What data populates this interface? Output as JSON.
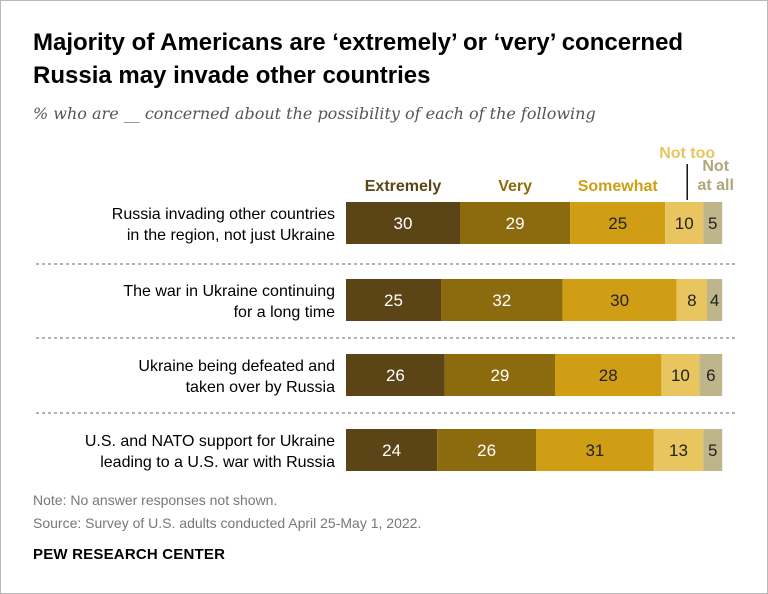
{
  "title": "Majority of Americans are ‘extremely’ or ‘very’ concerned Russia may invade other countries",
  "subtitle": "% who are __ concerned about the possibility of each of the following",
  "note": "Note: No answer responses not shown.",
  "source": "Source: Survey of U.S. adults conducted April 25-May 1, 2022.",
  "brand": "PEW RESEARCH CENTER",
  "chart_data": {
    "type": "bar",
    "orientation": "horizontal",
    "stacked": true,
    "title": "Majority of Americans are ‘extremely’ or ‘very’ concerned Russia may invade other countries",
    "subtitle": "% who are __ concerned about the possibility of each of the following",
    "categories": [
      [
        "Russia invading other countries",
        "in the region, not just Ukraine"
      ],
      [
        "The war in Ukraine continuing",
        "for a long time"
      ],
      [
        "Ukraine being defeated and",
        "taken over by Russia"
      ],
      [
        "U.S. and NATO support for Ukraine",
        "leading to a U.S. war with Russia"
      ]
    ],
    "series": [
      {
        "name": "Extremely",
        "label_lines": [
          "Extremely"
        ],
        "color": "#5b4516",
        "label_color": "#5b4516",
        "text_color": "#ffffff",
        "values": [
          30,
          25,
          26,
          24
        ]
      },
      {
        "name": "Very",
        "label_lines": [
          "Very"
        ],
        "color": "#8c6b0e",
        "label_color": "#8c6b0e",
        "text_color": "#ffffff",
        "values": [
          29,
          32,
          29,
          26
        ]
      },
      {
        "name": "Somewhat",
        "label_lines": [
          "Somewhat"
        ],
        "color": "#cf9e14",
        "label_color": "#cf9e14",
        "text_color": "#222222",
        "values": [
          25,
          30,
          28,
          31
        ]
      },
      {
        "name": "Not too",
        "label_lines": [
          "Not too"
        ],
        "color": "#e8c55e",
        "label_color": "#e8c55e",
        "text_color": "#222222",
        "values": [
          10,
          8,
          10,
          13
        ]
      },
      {
        "name": "Not at all",
        "label_lines": [
          "Not",
          "at all"
        ],
        "color": "#bfb58a",
        "label_color": "#b0a67c",
        "text_color": "#222222",
        "values": [
          5,
          4,
          6,
          5
        ]
      }
    ],
    "xlim": [
      0,
      100
    ],
    "grid": false,
    "legend": "top"
  }
}
